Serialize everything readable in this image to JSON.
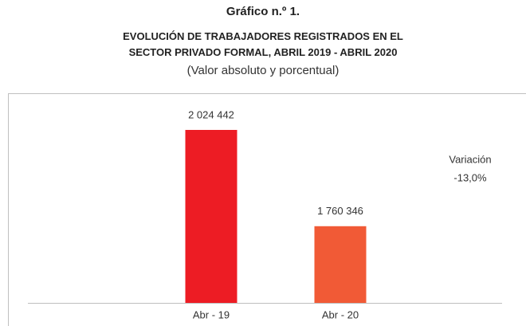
{
  "chart_data": {
    "type": "bar",
    "title": "Gráfico n.º 1.",
    "subtitle": "EVOLUCIÓN DE TRABAJADORES REGISTRADOS EN EL SECTOR PRIVADO FORMAL, ABRIL 2019 - ABRIL 2020",
    "note": "(Valor absoluto y porcentual)",
    "categories": [
      "Abr - 19",
      "Abr - 20"
    ],
    "values": [
      2024442,
      1760346
    ],
    "value_labels": [
      "2 024 442",
      "1 760 346"
    ],
    "colors": [
      "#ed1c24",
      "#f15a36"
    ],
    "annotation": [
      "Variación",
      "-13,0%"
    ],
    "ylim": [
      1550000,
      2125000
    ]
  }
}
